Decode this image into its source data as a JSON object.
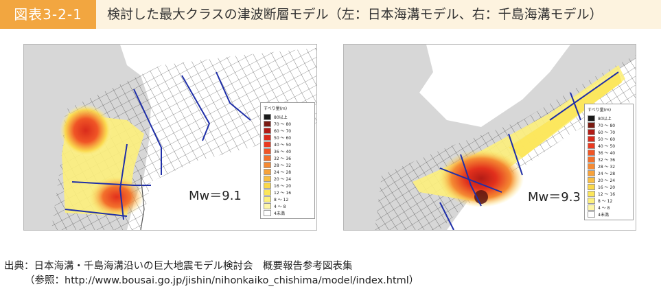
{
  "header": {
    "figure_label": "図表3-2-1",
    "title": "検討した最大クラスの津波断層モデル（左：日本海溝モデル、右：千島海溝モデル）"
  },
  "panels": [
    {
      "mw": "Mw＝9.1",
      "legend_title": "すべり量(m)",
      "legend": [
        {
          "label": "80以上",
          "color": "#1a1a1a"
        },
        {
          "label": "70 ～ 80",
          "color": "#7a1a12"
        },
        {
          "label": "60 ～ 70",
          "color": "#b21c16"
        },
        {
          "label": "50 ～ 60",
          "color": "#d92b1b"
        },
        {
          "label": "40 ～ 50",
          "color": "#ea3a20"
        },
        {
          "label": "36 ～ 40",
          "color": "#f05526"
        },
        {
          "label": "32 ～ 36",
          "color": "#f3712c"
        },
        {
          "label": "28 ～ 32",
          "color": "#f58a33"
        },
        {
          "label": "24 ～ 28",
          "color": "#f7a23b"
        },
        {
          "label": "20 ～ 24",
          "color": "#f9bf43"
        },
        {
          "label": "16 ～ 20",
          "color": "#fbd84a"
        },
        {
          "label": "12 ～ 16",
          "color": "#fce65a"
        },
        {
          "label": "8 ～ 12",
          "color": "#fdf07c"
        },
        {
          "label": "4 ～ 8",
          "color": "#fef6a8"
        },
        {
          "label": "4未満",
          "color": "#ffffff"
        }
      ]
    },
    {
      "mw": "Mw＝9.3",
      "legend_title": "すべり量(m)",
      "legend": [
        {
          "label": "80以上",
          "color": "#1a1a1a"
        },
        {
          "label": "70 ～ 80",
          "color": "#7a1a12"
        },
        {
          "label": "60 ～ 70",
          "color": "#b21c16"
        },
        {
          "label": "50 ～ 60",
          "color": "#d92b1b"
        },
        {
          "label": "40 ～ 50",
          "color": "#ea3a20"
        },
        {
          "label": "36 ～ 40",
          "color": "#f05526"
        },
        {
          "label": "32 ～ 36",
          "color": "#f3712c"
        },
        {
          "label": "28 ～ 32",
          "color": "#f58a33"
        },
        {
          "label": "24 ～ 28",
          "color": "#f7a23b"
        },
        {
          "label": "20 ～ 24",
          "color": "#f9bf43"
        },
        {
          "label": "16 ～ 20",
          "color": "#fbd84a"
        },
        {
          "label": "12 ～ 16",
          "color": "#fce65a"
        },
        {
          "label": "8 ～ 12",
          "color": "#fdf07c"
        },
        {
          "label": "4 ～ 8",
          "color": "#fef6a8"
        },
        {
          "label": "4未満",
          "color": "#ffffff"
        }
      ]
    }
  ],
  "source": {
    "line1": "出典：日本海溝・千島海溝沿いの巨大地震モデル検討会　概要報告参考図表集",
    "line2": "（参照：http://www.bousai.go.jp/jishin/nihonkaiko_chishima/model/index.html）"
  },
  "colors": {
    "accent": "#f2a640",
    "header_bg": "#fdf3df",
    "fault_lines": "#1f2fa8"
  }
}
